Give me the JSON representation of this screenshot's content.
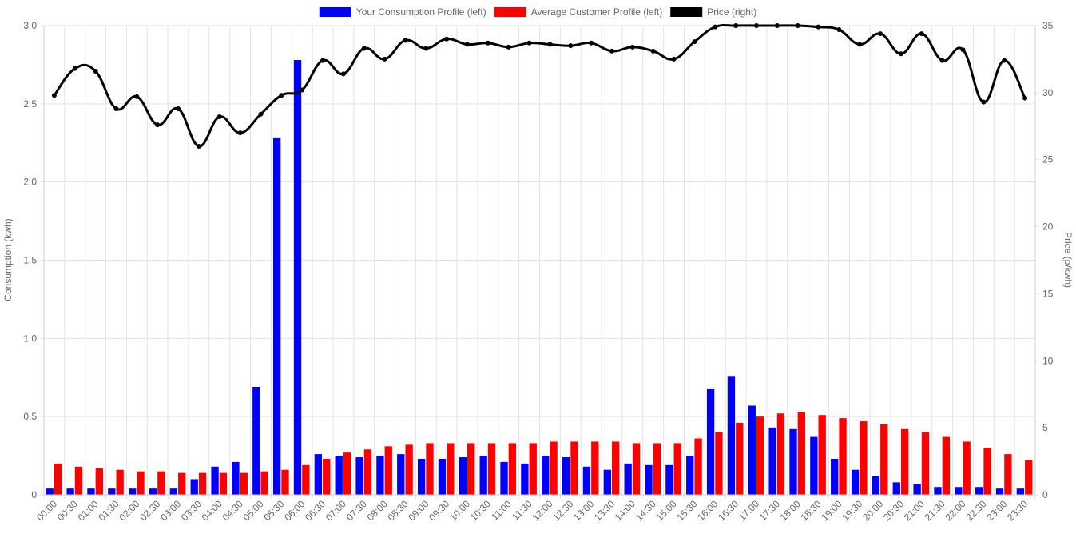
{
  "chart_data": {
    "type": "bar",
    "title": "",
    "legend": {
      "position": "top",
      "items": [
        {
          "label": "Your Consumption Profile (left)",
          "color": "#0000ff"
        },
        {
          "label": "Average Customer Profile (left)",
          "color": "#ff0000"
        },
        {
          "label": "Price (right)",
          "color": "#000000"
        }
      ]
    },
    "y_left": {
      "label": "Consumption (kwh)",
      "min": 0,
      "max": 3.0,
      "ticks": [
        "0",
        "0.5",
        "1.0",
        "1.5",
        "2.0",
        "2.5",
        "3.0"
      ]
    },
    "y_right": {
      "label": "Price (p/kwh)",
      "min": 0,
      "max": 35,
      "ticks": [
        "0",
        "5",
        "10",
        "15",
        "20",
        "25",
        "30",
        "35"
      ]
    },
    "grid": true,
    "categories": [
      "00:00",
      "00:30",
      "01:00",
      "01:30",
      "02:00",
      "02:30",
      "03:00",
      "03:30",
      "04:00",
      "04:30",
      "05:00",
      "05:30",
      "06:00",
      "06:30",
      "07:00",
      "07:30",
      "08:00",
      "08:30",
      "09:00",
      "09:30",
      "10:00",
      "10:30",
      "11:00",
      "11:30",
      "12:00",
      "12:30",
      "13:00",
      "13:30",
      "14:00",
      "14:30",
      "15:00",
      "15:30",
      "16:00",
      "16:30",
      "17:00",
      "17:30",
      "18:00",
      "18:30",
      "19:00",
      "19:30",
      "20:00",
      "20:30",
      "21:00",
      "21:30",
      "22:00",
      "22:30",
      "23:00",
      "23:30"
    ],
    "series": [
      {
        "name": "Your Consumption Profile (left)",
        "type": "bar",
        "axis": "left",
        "color": "#0000ff",
        "values": [
          0.04,
          0.04,
          0.04,
          0.04,
          0.04,
          0.04,
          0.04,
          0.1,
          0.18,
          0.21,
          0.69,
          2.28,
          2.78,
          0.26,
          0.25,
          0.24,
          0.25,
          0.26,
          0.23,
          0.23,
          0.24,
          0.25,
          0.21,
          0.2,
          0.25,
          0.24,
          0.18,
          0.16,
          0.2,
          0.19,
          0.19,
          0.25,
          0.68,
          0.76,
          0.57,
          0.43,
          0.42,
          0.37,
          0.23,
          0.16,
          0.12,
          0.08,
          0.07,
          0.05,
          0.05,
          0.05,
          0.04,
          0.04
        ]
      },
      {
        "name": "Average Customer Profile (left)",
        "type": "bar",
        "axis": "left",
        "color": "#ff0000",
        "values": [
          0.2,
          0.18,
          0.17,
          0.16,
          0.15,
          0.15,
          0.14,
          0.14,
          0.14,
          0.14,
          0.15,
          0.16,
          0.19,
          0.23,
          0.27,
          0.29,
          0.31,
          0.32,
          0.33,
          0.33,
          0.33,
          0.33,
          0.33,
          0.33,
          0.34,
          0.34,
          0.34,
          0.34,
          0.33,
          0.33,
          0.33,
          0.36,
          0.4,
          0.46,
          0.5,
          0.52,
          0.53,
          0.51,
          0.49,
          0.47,
          0.45,
          0.42,
          0.4,
          0.37,
          0.34,
          0.3,
          0.26,
          0.22
        ]
      },
      {
        "name": "Price (right)",
        "type": "line",
        "axis": "right",
        "color": "#000000",
        "values": [
          29.8,
          31.8,
          31.6,
          28.8,
          29.7,
          27.6,
          28.8,
          26.0,
          28.2,
          27.0,
          28.4,
          29.8,
          30.2,
          32.4,
          31.4,
          33.3,
          32.5,
          33.9,
          33.3,
          34.0,
          33.6,
          33.7,
          33.4,
          33.7,
          33.6,
          33.5,
          33.7,
          33.1,
          33.4,
          33.1,
          32.5,
          33.8,
          34.9,
          35.0,
          35.0,
          35.0,
          35.0,
          34.9,
          34.7,
          33.6,
          34.4,
          32.9,
          34.4,
          32.4,
          33.2,
          29.3,
          32.4,
          29.6
        ]
      }
    ]
  }
}
